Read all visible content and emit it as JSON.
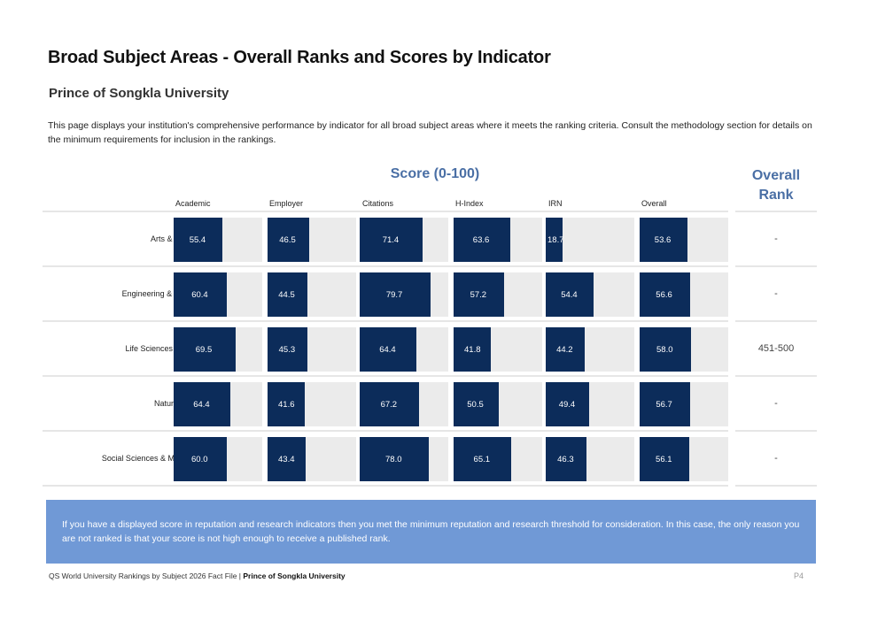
{
  "page": {
    "title": "Broad Subject Areas - Overall Ranks and Scores by Indicator",
    "institution": "Prince of Songkla University",
    "description": "This page displays your institution's comprehensive performance by indicator for all broad subject areas where it meets the ranking criteria. Consult the methodology section for details on the minimum requirements for inclusion in the rankings."
  },
  "table": {
    "score_header": "Score (0-100)",
    "rank_header": "Overall Rank",
    "columns": [
      "Academic",
      "Employer",
      "Citations",
      "H-Index",
      "IRN",
      "Overall"
    ],
    "rows": [
      {
        "subject": "Arts & Humanities",
        "scores": [
          "55.4",
          "46.5",
          "71.4",
          "63.6",
          "18.7",
          "53.6"
        ],
        "rank": "-"
      },
      {
        "subject": "Engineering & Technology",
        "scores": [
          "60.4",
          "44.5",
          "79.7",
          "57.2",
          "54.4",
          "56.6"
        ],
        "rank": "-"
      },
      {
        "subject": "Life Sciences & Medicine",
        "scores": [
          "69.5",
          "45.3",
          "64.4",
          "41.8",
          "44.2",
          "58.0"
        ],
        "rank": "451-500"
      },
      {
        "subject": "Natural Sciences",
        "scores": [
          "64.4",
          "41.6",
          "67.2",
          "50.5",
          "49.4",
          "56.7"
        ],
        "rank": "-"
      },
      {
        "subject": "Social Sciences & Management",
        "scores": [
          "60.0",
          "43.4",
          "78.0",
          "65.1",
          "46.3",
          "56.1"
        ],
        "rank": "-"
      }
    ]
  },
  "note": "If you have a displayed score in reputation and research indicators then you met the minimum reputation and research threshold for consideration. In this case, the only reason you are not ranked is that your score is not high enough to receive a published rank.",
  "footer": {
    "prefix": "QS World University Rankings by Subject 2026 Fact File |",
    "institution": "Prince of Songkla University",
    "page": "P4"
  },
  "colors": {
    "bar": "#0c2c5a",
    "bar_track": "#ebebeb",
    "header_accent": "#4a6fa5",
    "note_bg": "#7099d6"
  }
}
